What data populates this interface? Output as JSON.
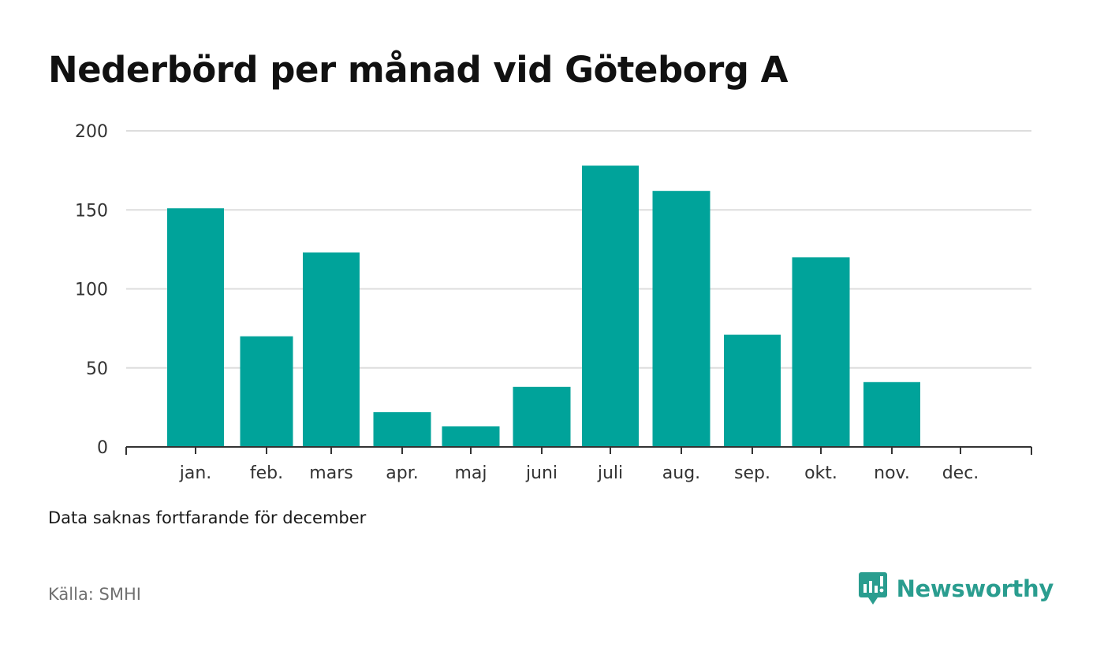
{
  "title": "Nederbörd per månad vid Göteborg A",
  "note": "Data saknas fortfarande för december",
  "source": "Källa: SMHI",
  "brand": {
    "name": "Newsworthy",
    "icon": "newsworthy-logo-icon",
    "color": "#2a9d8f"
  },
  "colors": {
    "bar": "#00a39a",
    "grid": "#dddddd",
    "axis": "#333333"
  },
  "chart_data": {
    "type": "bar",
    "title": "Nederbörd per månad vid Göteborg A",
    "xlabel": "",
    "ylabel": "",
    "categories": [
      "jan.",
      "feb.",
      "mars",
      "apr.",
      "maj",
      "juni",
      "juli",
      "aug.",
      "sep.",
      "okt.",
      "nov.",
      "dec."
    ],
    "values": [
      151,
      70,
      123,
      22,
      13,
      38,
      178,
      162,
      71,
      120,
      41,
      null
    ],
    "ylim": [
      0,
      200
    ],
    "yticks": [
      0,
      50,
      100,
      150,
      200
    ],
    "grid": true,
    "legend": "none"
  }
}
